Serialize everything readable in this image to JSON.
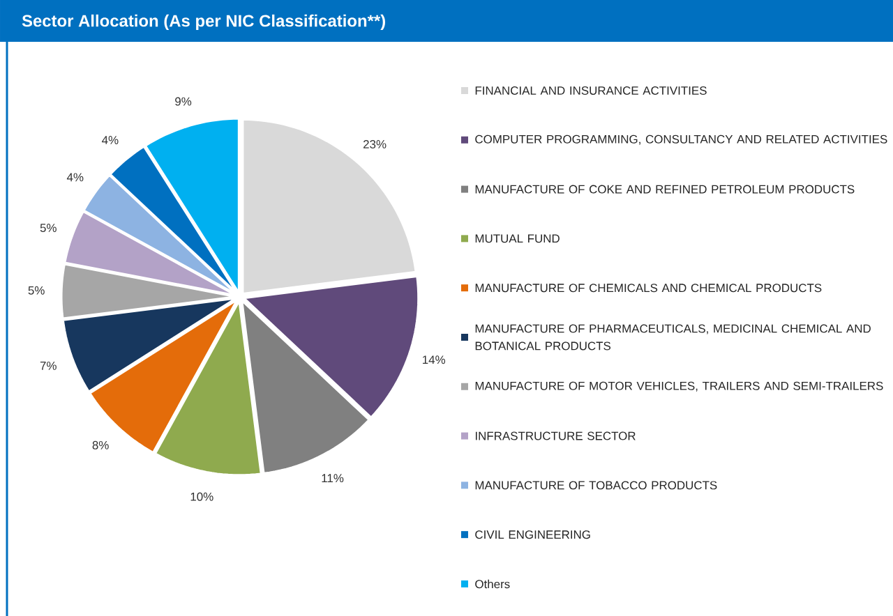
{
  "chart_data": {
    "type": "pie",
    "title": "Sector Allocation (As per NIC Classification**)",
    "categories": [
      "FINANCIAL AND INSURANCE ACTIVITIES",
      "COMPUTER PROGRAMMING, CONSULTANCY AND RELATED ACTIVITIES",
      "MANUFACTURE OF COKE AND REFINED PETROLEUM PRODUCTS",
      "MUTUAL FUND",
      "MANUFACTURE OF CHEMICALS AND CHEMICAL PRODUCTS",
      "MANUFACTURE OF PHARMACEUTICALS, MEDICINAL CHEMICAL AND BOTANICAL PRODUCTS",
      "MANUFACTURE OF MOTOR VEHICLES, TRAILERS AND SEMI-TRAILERS",
      "INFRASTRUCTURE SECTOR",
      "MANUFACTURE OF TOBACCO PRODUCTS",
      "CIVIL ENGINEERING",
      "Others"
    ],
    "values": [
      23,
      14,
      11,
      10,
      8,
      7,
      5,
      5,
      4,
      4,
      9
    ],
    "colors": [
      "#d9d9d9",
      "#604a7b",
      "#808080",
      "#8faa4e",
      "#e46c0a",
      "#17375e",
      "#a6a6a6",
      "#b3a2c7",
      "#8db3e2",
      "#0070c0",
      "#00b0f0"
    ],
    "value_labels": [
      "23%",
      "14%",
      "11%",
      "10%",
      "8%",
      "7%",
      "5%",
      "5%",
      "4%",
      "4%",
      "9%"
    ],
    "legend": "right"
  }
}
